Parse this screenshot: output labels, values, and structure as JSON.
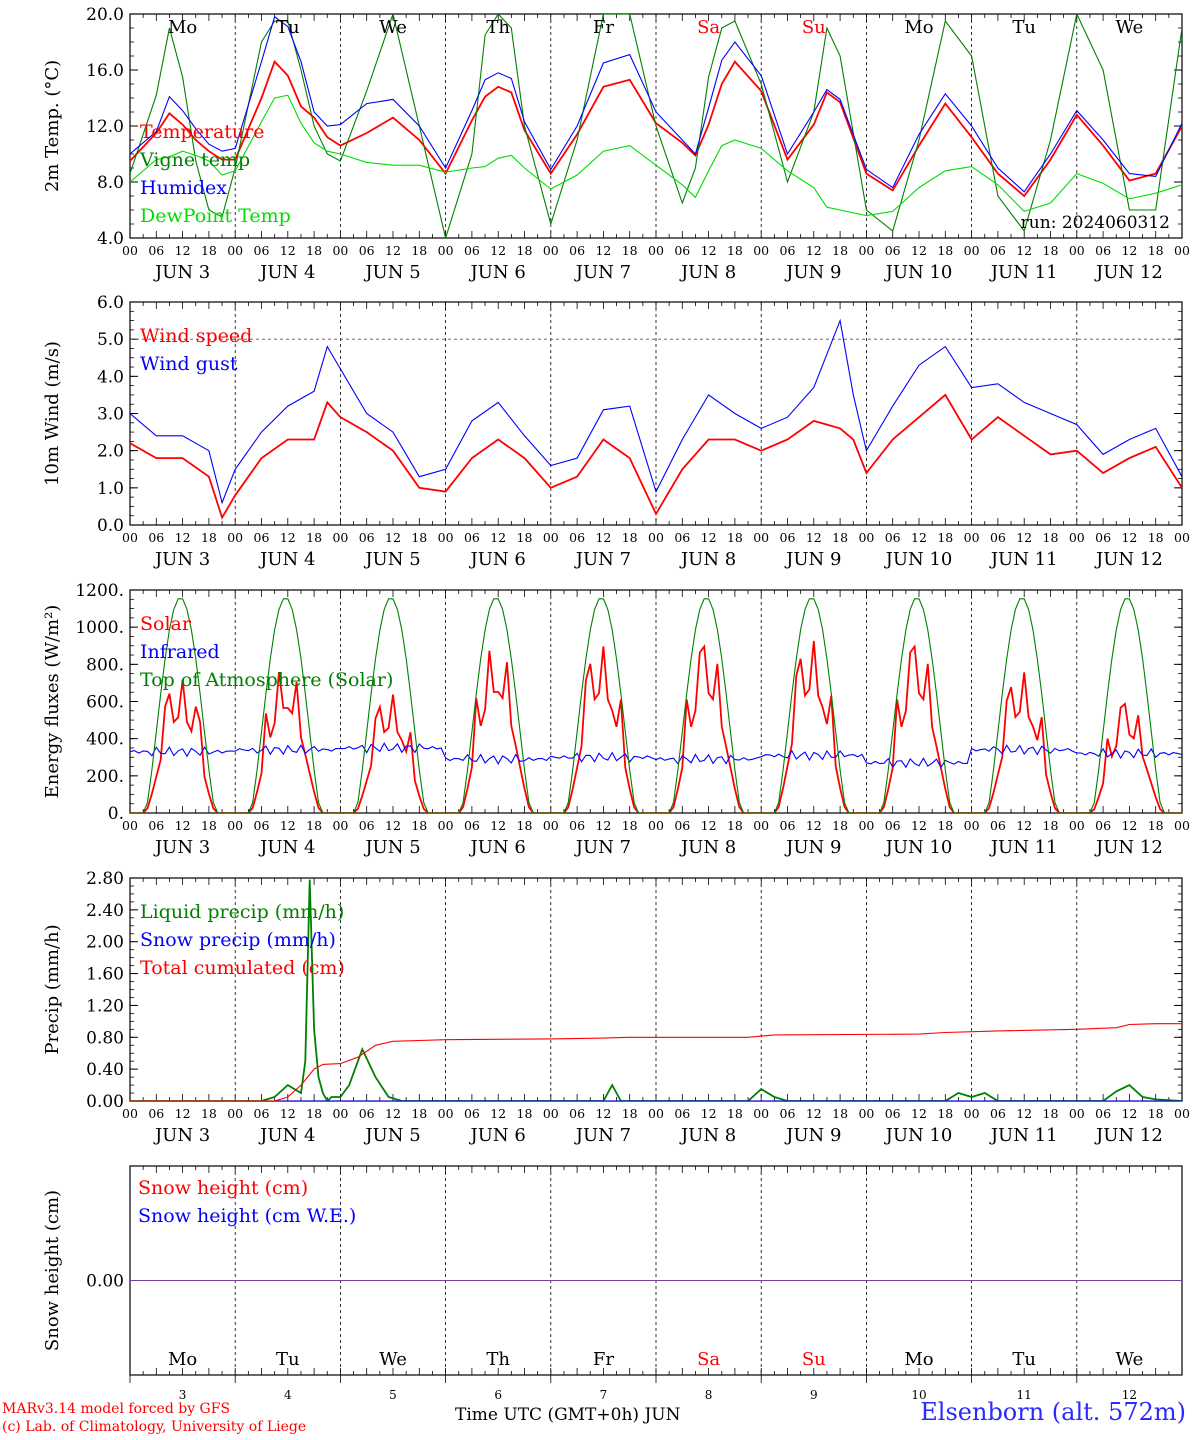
{
  "days": [
    {
      "label": "Mo",
      "date": "JUN  3",
      "num": "3",
      "weekend": false
    },
    {
      "label": "Tu",
      "date": "JUN  4",
      "num": "4",
      "weekend": false
    },
    {
      "label": "We",
      "date": "JUN  5",
      "num": "5",
      "weekend": false
    },
    {
      "label": "Th",
      "date": "JUN  6",
      "num": "6",
      "weekend": false
    },
    {
      "label": "Fr",
      "date": "JUN  7",
      "num": "7",
      "weekend": false
    },
    {
      "label": "Sa",
      "date": "JUN  8",
      "num": "8",
      "weekend": true
    },
    {
      "label": "Su",
      "date": "JUN  9",
      "num": "9",
      "weekend": true
    },
    {
      "label": "Mo",
      "date": "JUN 10",
      "num": "10",
      "weekend": false
    },
    {
      "label": "Tu",
      "date": "JUN 11",
      "num": "11",
      "weekend": false
    },
    {
      "label": "We",
      "date": "JUN 12",
      "num": "12",
      "weekend": false
    }
  ],
  "hour_ticks": [
    "00",
    "06",
    "12",
    "18"
  ],
  "last_tick": "00",
  "colors": {
    "red": "#ff0000",
    "blue": "#0000ff",
    "green": "#008000",
    "lightgreen": "#00dd00",
    "weekend": "#ff0000",
    "axis": "#000000"
  },
  "footer": {
    "credits_line1": "MARv3.14 model forced by GFS",
    "credits_line2": "(c) Lab. of Climatology, University of Liege",
    "xlabel": "Time UTC (GMT+0h) JUN",
    "station": "Elsenborn (alt. 572m)"
  },
  "chart_data": [
    {
      "type": "line",
      "ylabel": "2m Temp. (°C)",
      "ylim": [
        4.0,
        20.0
      ],
      "yticks": [
        4.0,
        8.0,
        12.0,
        16.0,
        20.0
      ],
      "ytick_labels": [
        "4.0",
        "8.0",
        "12.0",
        "16.0",
        "20.0"
      ],
      "annotation": "run: 2024060312",
      "hours": [
        0,
        6,
        9,
        12,
        15,
        18,
        21,
        24,
        30,
        33,
        36,
        39,
        42,
        45,
        48,
        54,
        60,
        66,
        72,
        78,
        81,
        84,
        87,
        90,
        96,
        102,
        108,
        114,
        120,
        126,
        129,
        132,
        135,
        138,
        144,
        150,
        156,
        159,
        162,
        168,
        174,
        180,
        186,
        192,
        198,
        204,
        210,
        216,
        222,
        228,
        234,
        240
      ],
      "series": [
        {
          "name": "Temperature",
          "color": "red",
          "values": [
            9.5,
            11.5,
            12.9,
            12.1,
            11.0,
            10.2,
            9.6,
            9.6,
            14.0,
            16.6,
            15.6,
            13.4,
            12.6,
            11.2,
            10.6,
            11.5,
            12.6,
            11.0,
            8.6,
            12.4,
            14.1,
            14.8,
            14.4,
            11.7,
            8.6,
            11.4,
            14.8,
            15.3,
            12.2,
            10.8,
            9.9,
            12.1,
            15.0,
            16.6,
            14.5,
            9.6,
            12.1,
            14.4,
            13.7,
            8.6,
            7.4,
            10.6,
            13.6,
            11.2,
            8.6,
            7.0,
            9.6,
            12.8,
            10.6,
            8.1,
            8.6,
            12.0
          ]
        },
        {
          "name": "Vigne temp",
          "color": "green",
          "values": [
            8.6,
            14.2,
            19.0,
            15.5,
            9.5,
            6.0,
            5.5,
            9.0,
            18.0,
            19.5,
            19.5,
            16.0,
            12.0,
            10.0,
            9.5,
            14.5,
            20.0,
            12.0,
            4.0,
            10.0,
            18.5,
            20.0,
            19.0,
            12.0,
            5.0,
            11.0,
            20.0,
            20.0,
            12.0,
            6.5,
            9.0,
            15.5,
            19.0,
            19.5,
            15.0,
            8.0,
            13.0,
            19.0,
            17.0,
            6.0,
            4.5,
            11.0,
            19.5,
            17.0,
            7.0,
            4.5,
            11.0,
            20.0,
            16.0,
            6.0,
            6.0,
            19.0
          ]
        },
        {
          "name": "Humidex",
          "color": "blue",
          "values": [
            10.0,
            11.6,
            14.1,
            13.1,
            11.8,
            10.7,
            10.2,
            10.4,
            16.6,
            19.8,
            19.1,
            16.6,
            13.0,
            12.0,
            12.1,
            13.6,
            13.9,
            12.0,
            9.0,
            13.1,
            15.3,
            15.8,
            15.4,
            12.3,
            8.9,
            12.0,
            16.5,
            17.1,
            13.0,
            11.0,
            10.0,
            13.3,
            16.7,
            18.0,
            15.6,
            10.0,
            13.0,
            14.6,
            13.9,
            8.9,
            7.6,
            11.4,
            14.3,
            12.0,
            9.0,
            7.3,
            10.0,
            13.1,
            11.0,
            8.6,
            8.4,
            12.2
          ]
        },
        {
          "name": "DewPoint Temp",
          "color": "lightgreen",
          "values": [
            8.0,
            9.6,
            9.8,
            10.2,
            9.9,
            9.5,
            8.5,
            8.8,
            12.3,
            14.0,
            14.2,
            12.2,
            10.8,
            10.2,
            10.0,
            9.4,
            9.2,
            9.2,
            8.7,
            9.0,
            9.1,
            9.7,
            9.9,
            9.0,
            7.5,
            8.5,
            10.2,
            10.6,
            9.2,
            7.8,
            6.9,
            8.8,
            10.6,
            11.0,
            10.4,
            8.8,
            7.6,
            6.2,
            6.0,
            5.6,
            5.9,
            7.6,
            8.8,
            9.1,
            7.8,
            5.9,
            6.5,
            8.6,
            7.9,
            6.8,
            7.2,
            7.8
          ]
        }
      ]
    },
    {
      "type": "line",
      "ylabel": "10m Wind (m/s)",
      "ylim": [
        0.0,
        6.0
      ],
      "yticks": [
        0.0,
        1.0,
        2.0,
        3.0,
        4.0,
        5.0,
        6.0
      ],
      "ytick_labels": [
        "0.0",
        "1.0",
        "2.0",
        "3.0",
        "4.0",
        "5.0",
        "6.0"
      ],
      "reference_line": 5.0,
      "hours": [
        0,
        6,
        12,
        18,
        21,
        24,
        30,
        36,
        42,
        45,
        48,
        54,
        60,
        66,
        72,
        78,
        84,
        90,
        96,
        102,
        108,
        114,
        120,
        126,
        132,
        138,
        144,
        150,
        156,
        162,
        165,
        168,
        174,
        180,
        186,
        192,
        198,
        204,
        210,
        216,
        222,
        228,
        234,
        240
      ],
      "series": [
        {
          "name": "Wind speed",
          "color": "red",
          "values": [
            2.2,
            1.8,
            1.8,
            1.3,
            0.2,
            0.8,
            1.8,
            2.3,
            2.3,
            3.3,
            2.9,
            2.5,
            2.0,
            1.0,
            0.9,
            1.8,
            2.3,
            1.8,
            1.0,
            1.3,
            2.3,
            1.8,
            0.3,
            1.5,
            2.3,
            2.3,
            2.0,
            2.3,
            2.8,
            2.6,
            2.3,
            1.4,
            2.3,
            2.9,
            3.5,
            2.3,
            2.9,
            2.4,
            1.9,
            2.0,
            1.4,
            1.8,
            2.1,
            1.0
          ]
        },
        {
          "name": "Wind gust",
          "color": "blue",
          "values": [
            3.0,
            2.4,
            2.4,
            2.0,
            0.6,
            1.5,
            2.5,
            3.2,
            3.6,
            4.8,
            4.2,
            3.0,
            2.5,
            1.3,
            1.5,
            2.8,
            3.3,
            2.4,
            1.6,
            1.8,
            3.1,
            3.2,
            0.9,
            2.3,
            3.5,
            3.0,
            2.6,
            2.9,
            3.7,
            5.5,
            3.5,
            2.0,
            3.2,
            4.3,
            4.8,
            3.7,
            3.8,
            3.3,
            3.0,
            2.7,
            1.9,
            2.3,
            2.6,
            1.3
          ]
        }
      ]
    },
    {
      "type": "line",
      "ylabel": "Energy fluxes (W/m²)",
      "ylim": [
        0,
        1200
      ],
      "yticks": [
        0,
        200,
        400,
        600,
        800,
        1000,
        1200
      ],
      "ytick_labels": [
        "0.",
        "200.",
        "400.",
        "600.",
        "800.",
        "1000.",
        "1200."
      ],
      "series": [
        {
          "name": "Solar",
          "color": "red",
          "daily_peak": [
            720,
            790,
            640,
            910,
            900,
            900,
            930,
            900,
            760,
            590
          ]
        },
        {
          "name": "Infrared",
          "color": "blue",
          "daily_level": [
            330,
            340,
            350,
            290,
            300,
            290,
            310,
            270,
            340,
            320
          ]
        },
        {
          "name": "Top of Atmosphere (Solar)",
          "color": "green",
          "daily_peak": [
            1160,
            1160,
            1160,
            1160,
            1160,
            1160,
            1160,
            1160,
            1160,
            1160
          ]
        }
      ]
    },
    {
      "type": "line",
      "ylabel": "Precip (mm/h)",
      "ylim": [
        0.0,
        2.8
      ],
      "yticks": [
        0.0,
        0.4,
        0.8,
        1.2,
        1.6,
        2.0,
        2.4,
        2.8
      ],
      "ytick_labels": [
        "0.00",
        "0.40",
        "0.80",
        "1.20",
        "1.60",
        "2.00",
        "2.40",
        "2.80"
      ],
      "series": [
        {
          "name": "Liquid precip (mm/h)",
          "color": "green",
          "hours": [
            0,
            30,
            33,
            36,
            39,
            40,
            41,
            42,
            43,
            44,
            45,
            46,
            48,
            50,
            53,
            56,
            59,
            62,
            66,
            72,
            108,
            109,
            110,
            111,
            112,
            114,
            141,
            144,
            147,
            150,
            186,
            189,
            192,
            195,
            198,
            222,
            225,
            228,
            231,
            234,
            240
          ],
          "values": [
            0,
            0,
            0.05,
            0.2,
            0.1,
            0.5,
            2.78,
            0.9,
            0.3,
            0.1,
            0,
            0.05,
            0.05,
            0.2,
            0.65,
            0.3,
            0.05,
            0,
            0,
            0,
            0,
            0.1,
            0.2,
            0.1,
            0,
            0,
            0,
            0.15,
            0.05,
            0,
            0,
            0.1,
            0.05,
            0.1,
            0,
            0,
            0.12,
            0.2,
            0.05,
            0.02,
            0
          ]
        },
        {
          "name": "Snow precip (mm/h)",
          "color": "blue",
          "hours": [
            0,
            240
          ],
          "values": [
            0,
            0
          ]
        },
        {
          "name": "Total cumulated (cm)",
          "color": "red",
          "hours": [
            0,
            33,
            36,
            39,
            42,
            44,
            48,
            52,
            56,
            60,
            66,
            72,
            96,
            108,
            114,
            141,
            147,
            180,
            186,
            198,
            216,
            225,
            228,
            234,
            240
          ],
          "values": [
            0,
            0,
            0.05,
            0.2,
            0.4,
            0.46,
            0.47,
            0.55,
            0.7,
            0.75,
            0.76,
            0.77,
            0.78,
            0.79,
            0.8,
            0.8,
            0.83,
            0.84,
            0.86,
            0.88,
            0.9,
            0.92,
            0.96,
            0.97,
            0.97
          ]
        }
      ]
    },
    {
      "type": "line",
      "ylabel": "Snow height (cm)",
      "yticks": [
        0.0
      ],
      "ytick_labels": [
        "0.00"
      ],
      "series": [
        {
          "name": "Snow height (cm)",
          "color": "red",
          "hours": [
            0,
            240
          ],
          "values": [
            0,
            0
          ]
        },
        {
          "name": "Snow height (cm W.E.)",
          "color": "blue",
          "hours": [
            0,
            240
          ],
          "values": [
            0,
            0
          ]
        }
      ]
    }
  ]
}
